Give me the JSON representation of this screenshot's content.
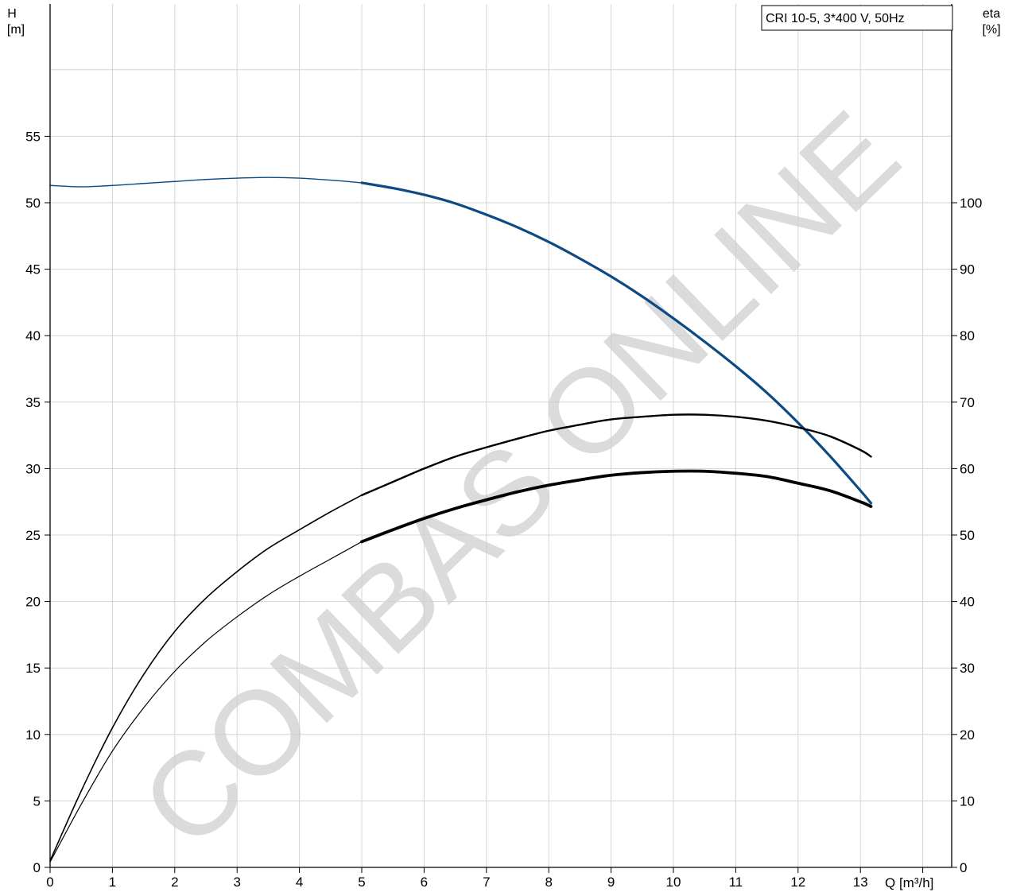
{
  "chart_data": {
    "type": "line",
    "title": "CRI 10-5, 3*400 V, 50Hz",
    "x_axis": {
      "label": "Q [m³/h]",
      "range": [
        0,
        14.5
      ],
      "ticks": [
        0,
        1,
        2,
        3,
        4,
        5,
        6,
        7,
        8,
        9,
        10,
        11,
        12,
        13,
        14
      ],
      "tick_labels": [
        "0",
        "1",
        "2",
        "3",
        "4",
        "5",
        "6",
        "7",
        "8",
        "9",
        "10",
        "11",
        "12",
        "13"
      ]
    },
    "y_left": {
      "label_line1": "H",
      "label_line2": "[m]",
      "range": [
        0,
        65
      ],
      "ticks": [
        0,
        5,
        10,
        15,
        20,
        25,
        30,
        35,
        40,
        45,
        50,
        55
      ],
      "tick_labels": [
        "0",
        "5",
        "10",
        "15",
        "20",
        "25",
        "30",
        "35",
        "40",
        "45",
        "50",
        "55"
      ]
    },
    "y_right": {
      "label_line1": "eta",
      "label_line2": "[%]",
      "range": [
        0,
        130
      ],
      "ticks": [
        0,
        10,
        20,
        30,
        40,
        50,
        60,
        70,
        80,
        90,
        100
      ],
      "tick_labels": [
        "0",
        "10",
        "20",
        "30",
        "40",
        "50",
        "60",
        "70",
        "80",
        "90",
        "100"
      ]
    },
    "grid": true,
    "series": [
      {
        "axis": "left",
        "color": "#0b4a82",
        "thin_until_x": 5.0,
        "points": [
          [
            0,
            51.3
          ],
          [
            0.5,
            51.2
          ],
          [
            1,
            51.3
          ],
          [
            1.5,
            51.45
          ],
          [
            2,
            51.6
          ],
          [
            2.5,
            51.75
          ],
          [
            3,
            51.85
          ],
          [
            3.5,
            51.9
          ],
          [
            4,
            51.85
          ],
          [
            4.5,
            51.7
          ],
          [
            5,
            51.5
          ],
          [
            5.5,
            51.1
          ],
          [
            6,
            50.6
          ],
          [
            6.5,
            49.95
          ],
          [
            7,
            49.1
          ],
          [
            7.5,
            48.15
          ],
          [
            8,
            47.05
          ],
          [
            8.5,
            45.8
          ],
          [
            9,
            44.45
          ],
          [
            9.5,
            42.95
          ],
          [
            10,
            41.3
          ],
          [
            10.5,
            39.55
          ],
          [
            11,
            37.7
          ],
          [
            11.5,
            35.7
          ],
          [
            12,
            33.45
          ],
          [
            12.5,
            31.0
          ],
          [
            13,
            28.35
          ],
          [
            13.17,
            27.4
          ]
        ]
      },
      {
        "axis": "right",
        "color": "#000000",
        "thin_until_x": 5.0,
        "points": [
          [
            0,
            1
          ],
          [
            0.5,
            11.5
          ],
          [
            1,
            21
          ],
          [
            1.5,
            29
          ],
          [
            2,
            35.5
          ],
          [
            2.5,
            40.5
          ],
          [
            3,
            44.5
          ],
          [
            3.5,
            48
          ],
          [
            4,
            50.8
          ],
          [
            4.5,
            53.5
          ],
          [
            5,
            56
          ],
          [
            5.5,
            58
          ],
          [
            6,
            60
          ],
          [
            6.5,
            61.8
          ],
          [
            7,
            63.2
          ],
          [
            7.5,
            64.5
          ],
          [
            8,
            65.7
          ],
          [
            8.5,
            66.6
          ],
          [
            9,
            67.4
          ],
          [
            9.5,
            67.8
          ],
          [
            10,
            68.1
          ],
          [
            10.5,
            68.1
          ],
          [
            11,
            67.8
          ],
          [
            11.5,
            67.2
          ],
          [
            12,
            66.2
          ],
          [
            12.5,
            64.9
          ],
          [
            13,
            62.8
          ],
          [
            13.17,
            61.8
          ]
        ]
      },
      {
        "axis": "right",
        "color": "#000000",
        "thin_until_x": 5.0,
        "points": [
          [
            0,
            0.8
          ],
          [
            0.5,
            9.5
          ],
          [
            1,
            17.5
          ],
          [
            1.5,
            24
          ],
          [
            2,
            29.5
          ],
          [
            2.5,
            34
          ],
          [
            3,
            37.7
          ],
          [
            3.5,
            41
          ],
          [
            4,
            43.8
          ],
          [
            4.5,
            46.4
          ],
          [
            5,
            49
          ],
          [
            5.5,
            50.8
          ],
          [
            6,
            52.5
          ],
          [
            6.5,
            54
          ],
          [
            7,
            55.3
          ],
          [
            7.5,
            56.5
          ],
          [
            8,
            57.5
          ],
          [
            8.5,
            58.3
          ],
          [
            9,
            59
          ],
          [
            9.5,
            59.4
          ],
          [
            10,
            59.6
          ],
          [
            10.5,
            59.6
          ],
          [
            11,
            59.3
          ],
          [
            11.5,
            58.8
          ],
          [
            12,
            57.8
          ],
          [
            12.5,
            56.7
          ],
          [
            13,
            55
          ],
          [
            13.17,
            54.3
          ]
        ]
      }
    ]
  },
  "watermark": "COMBAS ONLINE"
}
